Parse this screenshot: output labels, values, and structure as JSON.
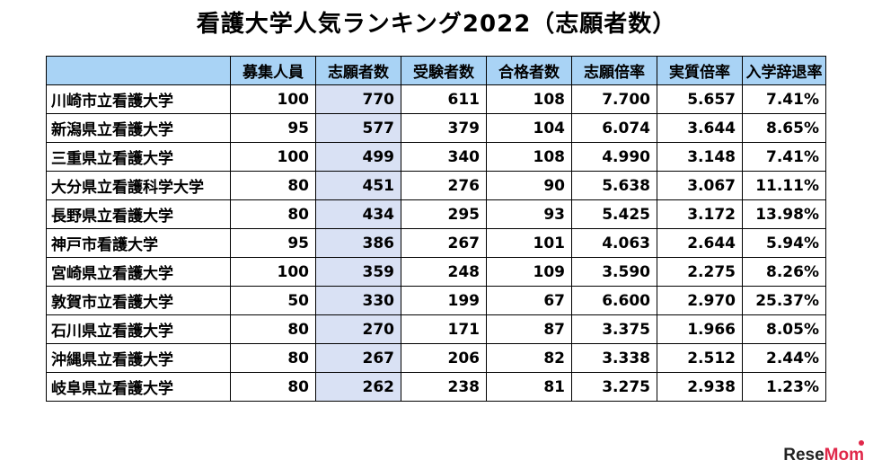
{
  "title": "看護大学人気ランキング2022（志願者数）",
  "columns": [
    "",
    "募集人員",
    "志願者数",
    "受験者数",
    "合格者数",
    "志願倍率",
    "実質倍率",
    "入学辞退率"
  ],
  "rows": [
    [
      "川崎市立看護大学",
      "100",
      "770",
      "611",
      "108",
      "7.700",
      "5.657",
      "7.41%"
    ],
    [
      "新潟県立看護大学",
      "95",
      "577",
      "379",
      "104",
      "6.074",
      "3.644",
      "8.65%"
    ],
    [
      "三重県立看護大学",
      "100",
      "499",
      "340",
      "108",
      "4.990",
      "3.148",
      "7.41%"
    ],
    [
      "大分県立看護科学大学",
      "80",
      "451",
      "276",
      "90",
      "5.638",
      "3.067",
      "11.11%"
    ],
    [
      "長野県立看護大学",
      "80",
      "434",
      "295",
      "93",
      "5.425",
      "3.172",
      "13.98%"
    ],
    [
      "神戸市看護大学",
      "95",
      "386",
      "267",
      "101",
      "4.063",
      "2.644",
      "5.94%"
    ],
    [
      "宮崎県立看護大学",
      "100",
      "359",
      "248",
      "109",
      "3.590",
      "2.275",
      "8.26%"
    ],
    [
      "敦賀市立看護大学",
      "50",
      "330",
      "199",
      "67",
      "6.600",
      "2.970",
      "25.37%"
    ],
    [
      "石川県立看護大学",
      "80",
      "270",
      "171",
      "87",
      "3.375",
      "1.966",
      "8.05%"
    ],
    [
      "沖縄県立看護大学",
      "80",
      "267",
      "206",
      "82",
      "3.338",
      "2.512",
      "2.44%"
    ],
    [
      "岐阜県立看護大学",
      "80",
      "262",
      "238",
      "81",
      "3.275",
      "2.938",
      "1.23%"
    ]
  ],
  "logo": {
    "part1": "Rese",
    "part2": "Mom"
  },
  "colors": {
    "header_bg": "#a9d3f5",
    "highlight_col_bg": "#d9e1f4",
    "logo_accent": "#e0284a"
  }
}
